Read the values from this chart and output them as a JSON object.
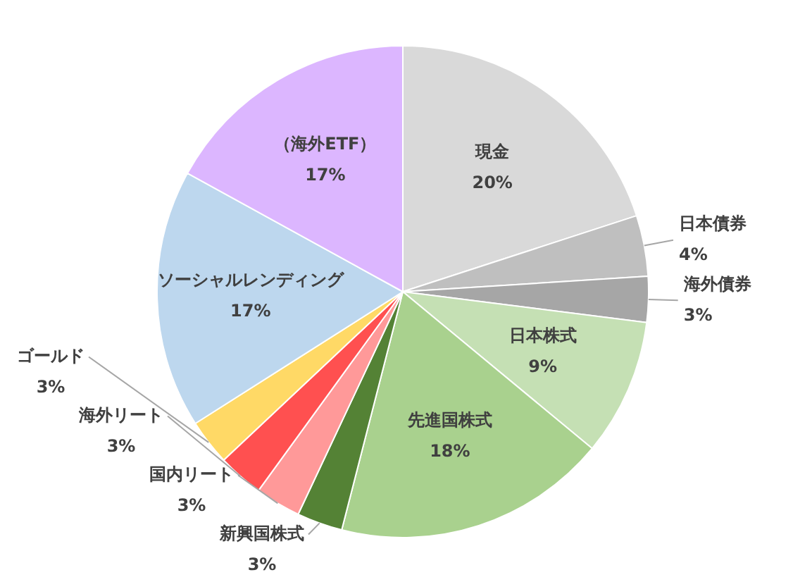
{
  "chart_data": {
    "type": "pie",
    "categories": [
      "現金",
      "日本債券",
      "海外債券",
      "日本株式",
      "先進国株式",
      "新興国株式",
      "国内リート",
      "海外リート",
      "ゴールド",
      "ソーシャルレンディング",
      "（海外ETF）"
    ],
    "values": [
      20,
      4,
      3,
      9,
      18,
      3,
      3,
      3,
      3,
      17,
      17
    ],
    "value_labels": [
      "20%",
      "4%",
      "3%",
      "9%",
      "18%",
      "3%",
      "3%",
      "3%",
      "3%",
      "17%",
      "17%"
    ],
    "colors": [
      "#d9d9d9",
      "#bfbfbf",
      "#a6a6a6",
      "#c5e0b4",
      "#a9d18e",
      "#548235",
      "#ff9999",
      "#ff5050",
      "#ffd966",
      "#bdd7ee",
      "#dcb6ff"
    ],
    "legend": false
  }
}
